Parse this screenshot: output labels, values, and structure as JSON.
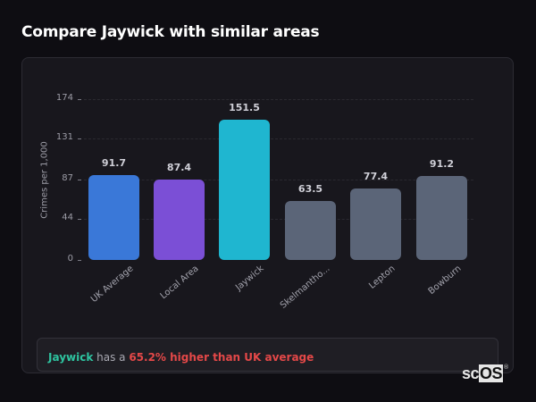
{
  "page": {
    "title": "Compare Jaywick with similar areas"
  },
  "chart_data": {
    "type": "bar",
    "title": "Compare Jaywick with similar areas",
    "xlabel": "",
    "ylabel": "Crimes per 1,000",
    "ylim": [
      0,
      174
    ],
    "yticks": [
      0,
      44,
      87,
      131,
      174
    ],
    "grid": true,
    "categories": [
      "UK Average",
      "Local Area",
      "Jaywick",
      "Skelmantho...",
      "Lepton",
      "Bowburn"
    ],
    "values": [
      91.7,
      87.4,
      151.5,
      63.5,
      77.4,
      91.2
    ],
    "value_labels": [
      "91.7",
      "87.4",
      "151.5",
      "63.5",
      "77.4",
      "91.2"
    ],
    "colors": [
      "#3a78d8",
      "#7b4fd6",
      "#1fb6d0",
      "#5b6578",
      "#5b6578",
      "#5b6578"
    ]
  },
  "summary": {
    "place": "Jaywick",
    "middle": " has a ",
    "stat": "65.2% higher than UK average"
  },
  "logo": {
    "sc": "sc",
    "os": "OS",
    "reg": "®"
  }
}
